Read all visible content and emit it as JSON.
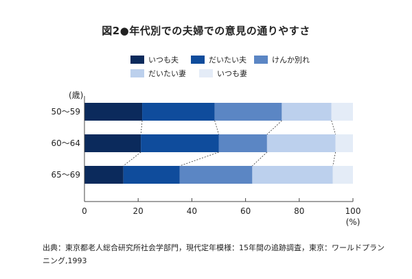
{
  "title": "図2●年代別での夫婦での意見の通りやすさ",
  "chart_data": {
    "type": "bar",
    "orientation": "horizontal",
    "stacked": true,
    "ylabel": "(歳)",
    "xunit": "(%)",
    "xlim": [
      0,
      100
    ],
    "xticks": [
      "0",
      "20",
      "40",
      "60",
      "80",
      "100"
    ],
    "categories": [
      "50～59",
      "60～64",
      "65～69"
    ],
    "series": [
      {
        "name": "いつも夫",
        "color": "#0b2a5c",
        "values": [
          21.5,
          21.0,
          14.5
        ]
      },
      {
        "name": "だいたい夫",
        "color": "#0f4c9c",
        "values": [
          27.0,
          29.0,
          21.0
        ]
      },
      {
        "name": "けんか別れ",
        "color": "#5b86c4",
        "values": [
          25.0,
          18.0,
          27.0
        ]
      },
      {
        "name": "だいたい妻",
        "color": "#bcd0ed",
        "values": [
          18.5,
          25.5,
          30.0
        ]
      },
      {
        "name": "いつも妻",
        "color": "#e4ecf7",
        "values": [
          8.0,
          6.5,
          7.5
        ]
      }
    ]
  },
  "source": "出典：東京都老人総合研究所社会学部門，現代定年模様：15年間の追跡調査，東京：ワールドプランニング,1993"
}
